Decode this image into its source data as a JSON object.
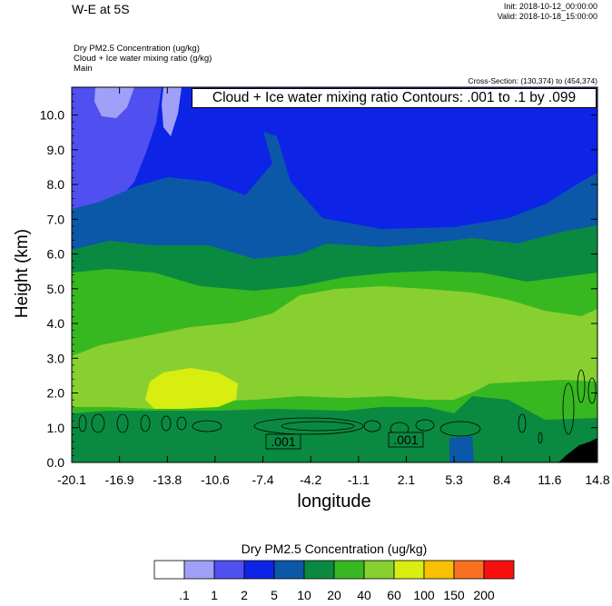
{
  "header": {
    "title": "W-E at 5S",
    "init": "Init: 2018-10-12_00:00:00",
    "valid": "Valid: 2018-10-18_15:00:00",
    "field1": "Dry PM2.5 Concentration   (ug/kg)",
    "field2": "Cloud + Ice water mixing ratio   (g/kg)",
    "field3": "Main",
    "cross_section": "Cross-Section: (130,374) to (454,374)"
  },
  "contour_info": "Cloud + Ice water mixing ratio Contours: .001 to .1 by .099",
  "chart_data": {
    "type": "heatmap",
    "xlabel": "longitude",
    "ylabel": "Height (km)",
    "x_ticks": [
      "-20.1",
      "-16.9",
      "-13.8",
      "-10.6",
      "-7.4",
      "-4.2",
      "-1.1",
      "2.1",
      "5.3",
      "8.4",
      "11.6",
      "14.8"
    ],
    "y_ticks": [
      "0.0",
      "1.0",
      "2.0",
      "3.0",
      "4.0",
      "5.0",
      "6.0",
      "7.0",
      "8.0",
      "9.0",
      "10.0"
    ],
    "xlim": [
      -20.1,
      14.8
    ],
    "ylim": [
      0,
      10.8
    ],
    "colorbar": {
      "title": "Dry PM2.5 Concentration  (ug/kg)",
      "levels": [
        ".1",
        "1",
        "2",
        "5",
        "10",
        "20",
        "40",
        "60",
        "100",
        "150",
        "200"
      ],
      "colors": [
        "#ffffff",
        "#a0a0f8",
        "#5050f0",
        "#0d24e6",
        "#0b58a8",
        "#0a8a40",
        "#38b820",
        "#88d030",
        "#d8ee10",
        "#f8c000",
        "#f87020",
        "#f81010"
      ]
    },
    "contour_labels": [
      ".001",
      ".001"
    ]
  }
}
